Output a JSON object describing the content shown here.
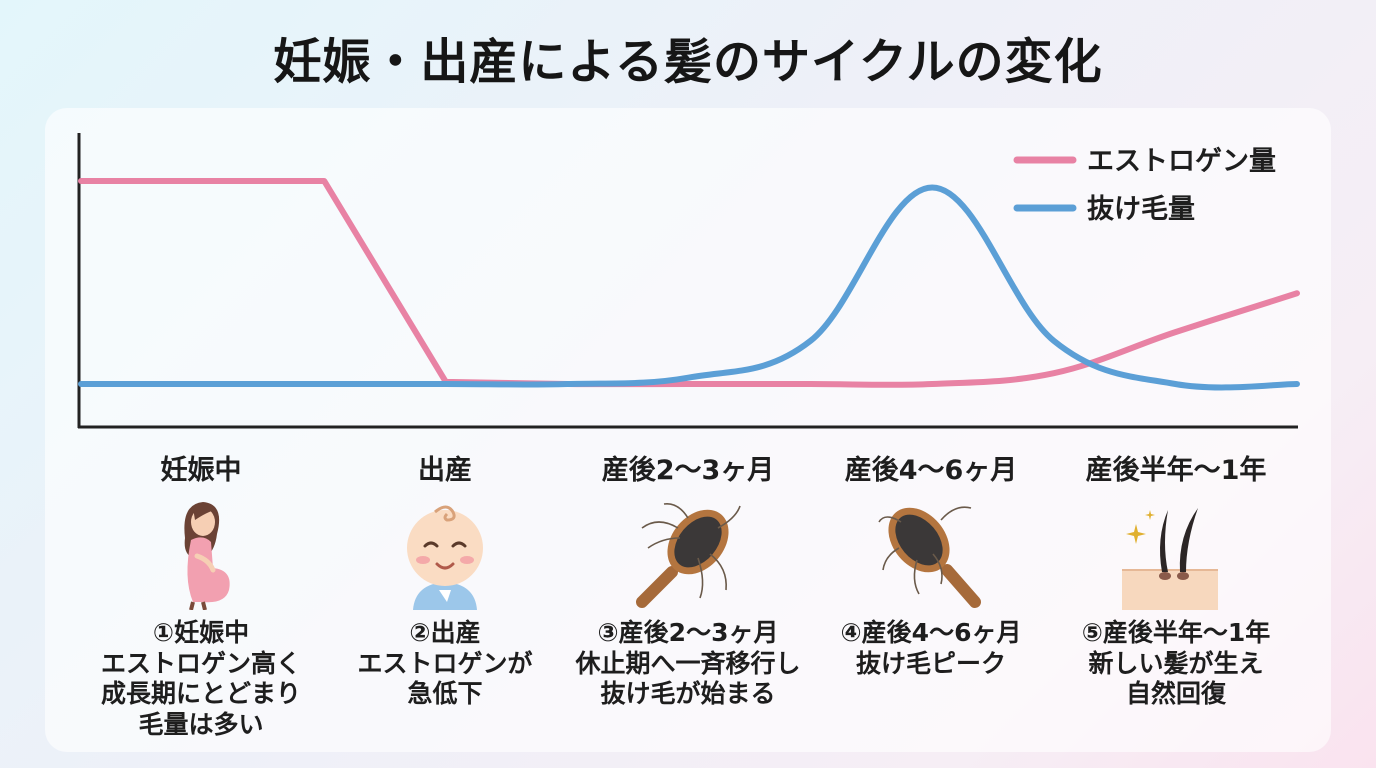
{
  "title": "妊娠・出産による髪のサイクルの変化",
  "chart_data": {
    "type": "line",
    "title": "妊娠・出産による髪のサイクルの変化",
    "xlabel": "",
    "ylabel": "",
    "x_categories": [
      "妊娠中",
      "出産",
      "産後2〜3ヶ月",
      "産後4〜6ヶ月",
      "産後半年〜1年"
    ],
    "x": [
      0,
      0.5,
      1,
      1.5,
      2,
      2.5,
      3,
      3.5,
      4,
      4.5,
      5
    ],
    "ylim": [
      0,
      1
    ],
    "grid": false,
    "legend_position": "top-right",
    "series": [
      {
        "name": "エストロゲン量",
        "color": "#e882a4",
        "values": [
          0.94,
          0.94,
          0.94,
          0.01,
          0.0,
          0.0,
          0.0,
          0.0,
          0.05,
          0.24,
          0.42
        ]
      },
      {
        "name": "抜け毛量",
        "color": "#5b9fd6",
        "values": [
          0.0,
          0.0,
          0.0,
          0.0,
          0.0,
          0.03,
          0.2,
          0.91,
          0.2,
          0.0,
          0.0
        ]
      }
    ]
  },
  "stages": [
    {
      "label": "妊娠中",
      "icon": "pregnant-woman-icon",
      "desc": [
        "①妊娠中",
        "エストロゲン高く",
        "成長期にとどまり",
        "毛量は多い"
      ]
    },
    {
      "label": "出産",
      "icon": "baby-icon",
      "desc": [
        "②出産",
        "エストロゲンが",
        "急低下"
      ]
    },
    {
      "label": "産後2〜3ヶ月",
      "icon": "hairbrush-shedding-icon",
      "desc": [
        "③産後2〜3ヶ月",
        "休止期へ一斉移行し",
        "抜け毛が始まる"
      ]
    },
    {
      "label": "産後4〜6ヶ月",
      "icon": "hairbrush-peak-icon",
      "desc": [
        "④産後4〜6ヶ月",
        "抜け毛ピーク"
      ]
    },
    {
      "label": "産後半年〜1年",
      "icon": "hair-regrowth-icon",
      "desc": [
        "⑤産後半年〜1年",
        "新しい髪が生え",
        "自然回復"
      ]
    }
  ]
}
